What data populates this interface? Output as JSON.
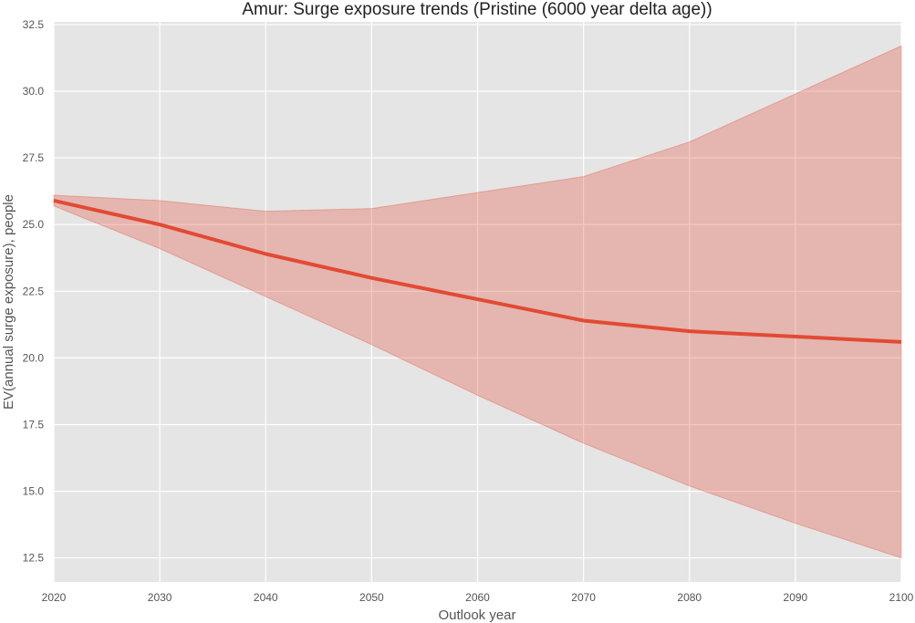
{
  "chart_data": {
    "type": "line",
    "title": "Amur: Surge exposure trends (Pristine (6000 year delta age))",
    "xlabel": "Outlook year",
    "ylabel": "EV(annual surge exposure), people",
    "x": [
      2020,
      2030,
      2040,
      2050,
      2060,
      2070,
      2080,
      2090,
      2100
    ],
    "xlim": [
      2020,
      2100
    ],
    "ylim": [
      11.6,
      32.6
    ],
    "xticks": [
      "2020",
      "2030",
      "2040",
      "2050",
      "2060",
      "2070",
      "2080",
      "2090",
      "2100"
    ],
    "yticks": [
      "12.5",
      "15.0",
      "17.5",
      "20.0",
      "22.5",
      "25.0",
      "27.5",
      "30.0",
      "32.5"
    ],
    "grid": true,
    "series": [
      {
        "values": [
          25.9,
          25.0,
          23.9,
          23.0,
          22.2,
          21.4,
          21.0,
          20.8,
          20.6
        ],
        "upper": [
          26.1,
          25.9,
          25.5,
          25.6,
          26.2,
          26.8,
          28.1,
          29.9,
          31.7
        ],
        "lower": [
          25.7,
          24.1,
          22.3,
          20.5,
          18.6,
          16.8,
          15.2,
          13.8,
          12.5
        ],
        "color": "#E24A33",
        "band_color": "#E24A33"
      }
    ],
    "plot_background": "#E5E5E5",
    "grid_color": "#FFFFFF"
  }
}
